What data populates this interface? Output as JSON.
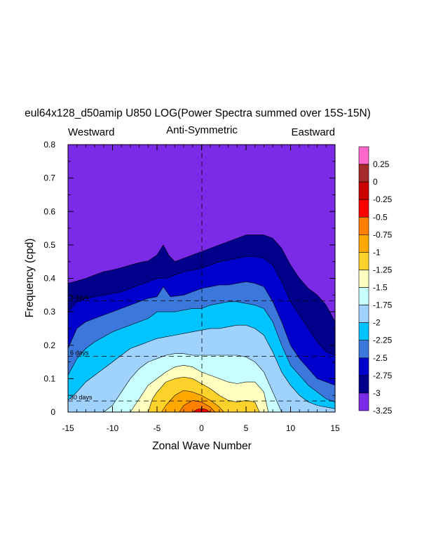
{
  "chart_data": {
    "type": "contour",
    "title": "eul64x128_d50amip U850 LOG(Power Spectra summed over 15S-15N)",
    "subtitle_left": "Westward",
    "subtitle_center": "Anti-Symmetric",
    "subtitle_right": "Eastward",
    "xlabel": "Zonal Wave Number",
    "ylabel": "Frequency (cpd)",
    "xlim": [
      -15,
      15
    ],
    "ylim": [
      0,
      0.8
    ],
    "xticks": [
      -15,
      -10,
      -5,
      0,
      5,
      10,
      15
    ],
    "xtick_labels": [
      "-15",
      "-10",
      "-5",
      "0",
      "5",
      "10",
      "15"
    ],
    "yticks": [
      0,
      0.1,
      0.2,
      0.3,
      0.4,
      0.5,
      0.6,
      0.7,
      0.8
    ],
    "ytick_labels": [
      "0",
      "0.1",
      "0.2",
      "0.3",
      "0.4",
      "0.5",
      "0.6",
      "0.7",
      "0.8"
    ],
    "period_lines": [
      {
        "label": "3 days",
        "frequency": 0.333
      },
      {
        "label": "6 days",
        "frequency": 0.1667
      },
      {
        "label": "30 days",
        "frequency": 0.0333
      }
    ],
    "colorbar_labels": [
      "0.25",
      "0",
      "-0.25",
      "-0.5",
      "-0.75",
      "-1",
      "-1.25",
      "-1.5",
      "-1.75",
      "-2",
      "-2.25",
      "-2.5",
      "-2.75",
      "-3",
      "-3.25"
    ],
    "colorbar_colors": [
      "#ff66cc",
      "#a52a2a",
      "#cc0000",
      "#ff0000",
      "#ff7f00",
      "#ffa800",
      "#ffd22b",
      "#ffffc0",
      "#c8ffff",
      "#a0d2ff",
      "#00c3ff",
      "#3c78dc",
      "#0000cd",
      "#00008b",
      "#7b2ae8"
    ],
    "levels": [
      {
        "value": "-3.25",
        "color": "#00008b",
        "k": [
          -15,
          -14,
          -13,
          -12,
          -11,
          -10,
          -9,
          -8,
          -7,
          -6,
          -5,
          -4.3,
          -3.7,
          -3,
          -2,
          -1,
          0,
          1,
          2,
          3,
          4,
          5,
          6,
          7,
          8,
          9,
          10,
          11,
          12,
          13,
          14,
          15
        ],
        "f": [
          0.385,
          0.392,
          0.4,
          0.41,
          0.42,
          0.425,
          0.432,
          0.44,
          0.447,
          0.452,
          0.47,
          0.5,
          0.47,
          0.45,
          0.46,
          0.47,
          0.48,
          0.49,
          0.5,
          0.51,
          0.52,
          0.53,
          0.53,
          0.53,
          0.52,
          0.49,
          0.44,
          0.4,
          0.37,
          0.35,
          0.32,
          0.27
        ]
      },
      {
        "value": "-3",
        "color": "#0000cd",
        "k": [
          -15,
          -14,
          -13,
          -12,
          -11,
          -10,
          -9,
          -8,
          -7,
          -6,
          -5,
          -4,
          -3,
          -2,
          -1,
          0,
          1,
          2,
          3,
          4,
          5,
          6,
          7,
          8,
          9,
          10,
          11,
          12,
          13,
          14,
          15
        ],
        "f": [
          0.3,
          0.33,
          0.34,
          0.345,
          0.35,
          0.355,
          0.36,
          0.37,
          0.38,
          0.39,
          0.4,
          0.4,
          0.41,
          0.42,
          0.425,
          0.43,
          0.44,
          0.45,
          0.455,
          0.46,
          0.465,
          0.465,
          0.46,
          0.44,
          0.39,
          0.33,
          0.29,
          0.25,
          0.21,
          0.18,
          0.17
        ]
      },
      {
        "value": "-2.75",
        "color": "#3c78dc",
        "k": [
          -15,
          -14,
          -13,
          -12,
          -11,
          -10,
          -9,
          -8,
          -7,
          -6,
          -5,
          -4.3,
          -3.5,
          -2,
          -1,
          0,
          1,
          2,
          3,
          4,
          5,
          6,
          7,
          8,
          9,
          10,
          11,
          12,
          13,
          14,
          15
        ],
        "f": [
          0.19,
          0.25,
          0.27,
          0.28,
          0.29,
          0.3,
          0.31,
          0.32,
          0.33,
          0.34,
          0.345,
          0.375,
          0.345,
          0.35,
          0.36,
          0.37,
          0.375,
          0.38,
          0.38,
          0.385,
          0.39,
          0.385,
          0.375,
          0.33,
          0.27,
          0.2,
          0.16,
          0.13,
          0.1,
          0.09,
          0.08
        ]
      },
      {
        "value": "-2.5",
        "color": "#00c3ff",
        "k": [
          -15,
          -14,
          -13,
          -12,
          -11,
          -10,
          -9,
          -8,
          -7,
          -6,
          -5,
          -4,
          -3,
          -2,
          -1,
          0,
          1,
          2,
          3,
          4,
          5,
          6,
          7,
          8,
          9,
          10,
          11,
          12,
          13,
          14,
          15
        ],
        "f": [
          0.11,
          0.16,
          0.19,
          0.21,
          0.225,
          0.24,
          0.25,
          0.26,
          0.27,
          0.28,
          0.3,
          0.3,
          0.3,
          0.305,
          0.31,
          0.31,
          0.32,
          0.325,
          0.33,
          0.33,
          0.325,
          0.32,
          0.31,
          0.27,
          0.2,
          0.14,
          0.11,
          0.08,
          0.06,
          0.04,
          0.03
        ]
      },
      {
        "value": "-2.25",
        "color": "#a0d2ff",
        "k": [
          -15,
          -14,
          -13,
          -12,
          -11,
          -10,
          -9,
          -8,
          -7,
          -6,
          -5,
          -4,
          -3,
          -2,
          -1,
          0,
          1,
          2,
          3,
          4,
          5,
          6,
          7,
          8,
          9,
          10,
          11,
          12,
          13,
          14,
          15
        ],
        "f": [
          0.035,
          0.06,
          0.09,
          0.11,
          0.13,
          0.15,
          0.17,
          0.19,
          0.2,
          0.21,
          0.22,
          0.225,
          0.23,
          0.235,
          0.24,
          0.245,
          0.25,
          0.25,
          0.255,
          0.26,
          0.26,
          0.25,
          0.23,
          0.18,
          0.12,
          0.08,
          0.05,
          0.03,
          0.02,
          0.015,
          0.01
        ]
      },
      {
        "value": "-2",
        "color": "#c8ffff",
        "k": [
          -11,
          -10,
          -9,
          -8,
          -7,
          -6,
          -5,
          -4,
          -3,
          -2,
          -1,
          0,
          1,
          2,
          3,
          4,
          5,
          6,
          7,
          8,
          9
        ],
        "f": [
          0,
          0.02,
          0.06,
          0.1,
          0.13,
          0.15,
          0.16,
          0.17,
          0.175,
          0.175,
          0.17,
          0.17,
          0.17,
          0.17,
          0.17,
          0.17,
          0.165,
          0.15,
          0.12,
          0.06,
          0
        ]
      },
      {
        "value": "-1.75",
        "color": "#ffffc0",
        "k": [
          -8,
          -7,
          -6,
          -5,
          -4,
          -3,
          -2,
          -1,
          0,
          1,
          2,
          3,
          4,
          5,
          6,
          7,
          7.5
        ],
        "f": [
          0,
          0.04,
          0.08,
          0.1,
          0.12,
          0.135,
          0.14,
          0.135,
          0.12,
          0.11,
          0.1,
          0.09,
          0.085,
          0.09,
          0.09,
          0.06,
          0
        ]
      },
      {
        "value": "-1.5",
        "color": "#ffd22b",
        "k": [
          -6,
          -5.5,
          -5,
          -4,
          -3,
          -2,
          -1,
          0,
          1,
          2,
          3,
          4,
          5,
          6,
          6.5
        ],
        "f": [
          0,
          0.04,
          0.06,
          0.09,
          0.1,
          0.105,
          0.1,
          0.085,
          0.07,
          0.05,
          0.035,
          0.03,
          0.035,
          0.03,
          0
        ]
      },
      {
        "value": "-1.25",
        "color": "#ffa800",
        "k": [
          -4.5,
          -4,
          -3,
          -2,
          -1,
          0,
          1,
          2,
          2.5
        ],
        "f": [
          0,
          0.02,
          0.05,
          0.065,
          0.06,
          0.05,
          0.035,
          0.015,
          0
        ]
      },
      {
        "value": "-1",
        "color": "#ff7f00",
        "k": [
          -2.5,
          -2,
          -1,
          0,
          1,
          1.5
        ],
        "f": [
          0,
          0.02,
          0.035,
          0.03,
          0.015,
          0
        ]
      },
      {
        "value": "-0.75",
        "color": "#ff0000",
        "k": [
          -1,
          -0.5,
          0,
          0.5,
          1
        ],
        "f": [
          0,
          0.008,
          0.01,
          0.008,
          0
        ]
      }
    ]
  }
}
